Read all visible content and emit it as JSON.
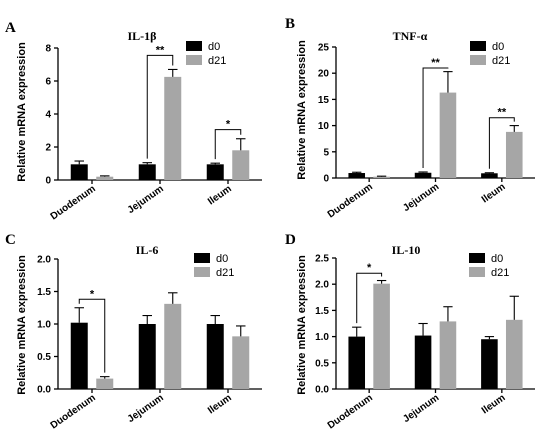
{
  "chart_data": [
    {
      "panel": "A",
      "type": "bar",
      "title": "IL-1β",
      "ylabel": "Relative mRNA expression",
      "categories": [
        "Duodenum",
        "Jejunum",
        "Ileum"
      ],
      "ylim": [
        0,
        8
      ],
      "yticks": [
        "0",
        "2",
        "4",
        "6",
        "8"
      ],
      "series": [
        {
          "name": "d0",
          "color": "#000000",
          "values": [
            0.95,
            0.95,
            0.95
          ],
          "errors": [
            0.2,
            0.1,
            0.07
          ]
        },
        {
          "name": "d21",
          "color": "#a6a6a6",
          "values": [
            0.2,
            6.25,
            1.8
          ],
          "errors": [
            0.05,
            0.45,
            0.7
          ]
        }
      ],
      "significance": [
        {
          "category": 1,
          "label": "**",
          "y": 7.55
        },
        {
          "category": 2,
          "label": "*",
          "y": 3.05
        }
      ],
      "legend": "top-right"
    },
    {
      "panel": "B",
      "type": "bar",
      "title": "TNF-α",
      "ylabel": "Relative mRNA expression",
      "categories": [
        "Duodenum",
        "Jejunum",
        "Ileum"
      ],
      "ylim": [
        0,
        25
      ],
      "yticks": [
        "0",
        "5",
        "10",
        "15",
        "20",
        "25"
      ],
      "series": [
        {
          "name": "d0",
          "color": "#000000",
          "values": [
            0.95,
            1.0,
            0.9
          ],
          "errors": [
            0.15,
            0.15,
            0.1
          ]
        },
        {
          "name": "d21",
          "color": "#a6a6a6",
          "values": [
            0.25,
            16.3,
            8.8
          ],
          "errors": [
            0.1,
            4.0,
            1.2
          ]
        }
      ],
      "significance": [
        {
          "category": 1,
          "label": "**",
          "y": 21.0
        },
        {
          "category": 2,
          "label": "**",
          "y": 11.5
        }
      ],
      "legend": "top-right"
    },
    {
      "panel": "C",
      "type": "bar",
      "title": "IL-6",
      "ylabel": "Relative mRNA expression",
      "categories": [
        "Duodenum",
        "Jejunum",
        "Ileum"
      ],
      "ylim": [
        0,
        2.0
      ],
      "yticks": [
        "0.0",
        "0.5",
        "1.0",
        "1.5",
        "2.0"
      ],
      "series": [
        {
          "name": "d0",
          "color": "#000000",
          "values": [
            1.02,
            1.0,
            1.0
          ],
          "errors": [
            0.23,
            0.13,
            0.13
          ]
        },
        {
          "name": "d21",
          "color": "#a6a6a6",
          "values": [
            0.16,
            1.31,
            0.81
          ],
          "errors": [
            0.03,
            0.17,
            0.16
          ]
        }
      ],
      "significance": [
        {
          "category": 0,
          "label": "*",
          "y": 1.38
        }
      ],
      "legend": "top-right"
    },
    {
      "panel": "D",
      "type": "bar",
      "title": "IL-10",
      "ylabel": "Relative mRNA expression",
      "categories": [
        "Duodenum",
        "Jejunum",
        "Ileum"
      ],
      "ylim": [
        0,
        2.5
      ],
      "yticks": [
        "0.0",
        "0.5",
        "1.0",
        "1.5",
        "2.0",
        "2.5"
      ],
      "series": [
        {
          "name": "d0",
          "color": "#000000",
          "values": [
            1.0,
            1.02,
            0.95
          ],
          "errors": [
            0.18,
            0.23,
            0.05
          ]
        },
        {
          "name": "d21",
          "color": "#a6a6a6",
          "values": [
            2.01,
            1.29,
            1.32
          ],
          "errors": [
            0.06,
            0.28,
            0.45
          ]
        }
      ],
      "significance": [
        {
          "category": 0,
          "label": "*",
          "y": 2.21
        }
      ],
      "legend": "top-right"
    }
  ]
}
